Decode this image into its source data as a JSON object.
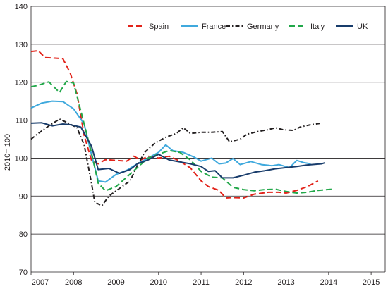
{
  "chart_data": {
    "type": "line",
    "ylabel": "2010= 100",
    "ylim": [
      70,
      140
    ],
    "yticks": [
      70,
      80,
      90,
      100,
      110,
      120,
      130,
      140
    ],
    "xlim": [
      2007,
      2015.33
    ],
    "xticks": [
      2007,
      2008,
      2009,
      2010,
      2011,
      2012,
      2013,
      2014,
      2015
    ],
    "grid": "horizontal",
    "legend": "top",
    "series": [
      {
        "name": "Spain",
        "color": "#e2231a",
        "dash": "dashed",
        "points": [
          [
            2007.0,
            128.1
          ],
          [
            2007.17,
            128.3
          ],
          [
            2007.33,
            126.5
          ],
          [
            2007.5,
            126.4
          ],
          [
            2007.75,
            126.2
          ],
          [
            2007.92,
            122.5
          ],
          [
            2008.08,
            117.0
          ],
          [
            2008.25,
            106.0
          ],
          [
            2008.42,
            99.5
          ],
          [
            2008.58,
            98.5
          ],
          [
            2008.75,
            99.6
          ],
          [
            2009.0,
            99.4
          ],
          [
            2009.25,
            99.2
          ],
          [
            2009.42,
            100.5
          ],
          [
            2009.58,
            99.5
          ],
          [
            2009.75,
            100.5
          ],
          [
            2010.0,
            100.0
          ],
          [
            2010.25,
            100.5
          ],
          [
            2010.5,
            99.2
          ],
          [
            2010.75,
            97.4
          ],
          [
            2011.0,
            94.0
          ],
          [
            2011.17,
            92.5
          ],
          [
            2011.42,
            91.5
          ],
          [
            2011.58,
            89.5
          ],
          [
            2011.75,
            89.6
          ],
          [
            2012.0,
            89.5
          ],
          [
            2012.25,
            90.5
          ],
          [
            2012.58,
            91.0
          ],
          [
            2012.83,
            91.0
          ],
          [
            2013.0,
            90.8
          ],
          [
            2013.25,
            91.5
          ],
          [
            2013.5,
            92.5
          ],
          [
            2013.75,
            94.0
          ]
        ]
      },
      {
        "name": "France",
        "color": "#3fa9dd",
        "dash": "solid",
        "points": [
          [
            2007.0,
            113.2
          ],
          [
            2007.25,
            114.5
          ],
          [
            2007.5,
            115.0
          ],
          [
            2007.75,
            114.9
          ],
          [
            2008.0,
            113.0
          ],
          [
            2008.25,
            109.0
          ],
          [
            2008.42,
            101.0
          ],
          [
            2008.58,
            94.0
          ],
          [
            2008.75,
            93.7
          ],
          [
            2009.0,
            95.7
          ],
          [
            2009.25,
            96.8
          ],
          [
            2009.5,
            98.5
          ],
          [
            2009.75,
            100.0
          ],
          [
            2010.0,
            101.5
          ],
          [
            2010.17,
            103.5
          ],
          [
            2010.33,
            102.0
          ],
          [
            2010.58,
            101.5
          ],
          [
            2010.83,
            100.3
          ],
          [
            2011.0,
            99.2
          ],
          [
            2011.25,
            100.0
          ],
          [
            2011.42,
            98.5
          ],
          [
            2011.58,
            98.7
          ],
          [
            2011.75,
            99.9
          ],
          [
            2011.92,
            98.3
          ],
          [
            2012.17,
            99.1
          ],
          [
            2012.42,
            98.3
          ],
          [
            2012.67,
            98.0
          ],
          [
            2012.83,
            98.3
          ],
          [
            2013.08,
            97.5
          ],
          [
            2013.25,
            99.4
          ],
          [
            2013.42,
            98.8
          ],
          [
            2013.58,
            98.5
          ]
        ]
      },
      {
        "name": "Germany",
        "color": "#231f20",
        "dash": "dashdot",
        "points": [
          [
            2007.0,
            105.0
          ],
          [
            2007.17,
            106.5
          ],
          [
            2007.42,
            108.5
          ],
          [
            2007.67,
            110.3
          ],
          [
            2007.92,
            109.0
          ],
          [
            2008.08,
            108.0
          ],
          [
            2008.25,
            103.5
          ],
          [
            2008.42,
            93.5
          ],
          [
            2008.5,
            88.3
          ],
          [
            2008.67,
            87.5
          ],
          [
            2008.83,
            90.0
          ],
          [
            2009.08,
            92.0
          ],
          [
            2009.33,
            94.0
          ],
          [
            2009.5,
            98.0
          ],
          [
            2009.67,
            101.5
          ],
          [
            2009.92,
            104.0
          ],
          [
            2010.17,
            105.5
          ],
          [
            2010.42,
            106.5
          ],
          [
            2010.58,
            108.0
          ],
          [
            2010.75,
            106.5
          ],
          [
            2011.0,
            106.8
          ],
          [
            2011.25,
            106.8
          ],
          [
            2011.5,
            107.0
          ],
          [
            2011.67,
            104.3
          ],
          [
            2011.92,
            105.0
          ],
          [
            2012.08,
            106.3
          ],
          [
            2012.33,
            107.0
          ],
          [
            2012.58,
            107.5
          ],
          [
            2012.75,
            108.0
          ],
          [
            2012.92,
            107.5
          ],
          [
            2013.17,
            107.3
          ],
          [
            2013.33,
            108.2
          ],
          [
            2013.58,
            108.8
          ],
          [
            2013.83,
            109.2
          ]
        ]
      },
      {
        "name": "Italy",
        "color": "#22a84a",
        "dash": "dashed",
        "points": [
          [
            2007.0,
            118.8
          ],
          [
            2007.17,
            119.2
          ],
          [
            2007.42,
            120.1
          ],
          [
            2007.67,
            117.3
          ],
          [
            2007.83,
            120.2
          ],
          [
            2008.0,
            119.8
          ],
          [
            2008.17,
            112.5
          ],
          [
            2008.42,
            101.5
          ],
          [
            2008.58,
            93.4
          ],
          [
            2008.75,
            91.4
          ],
          [
            2009.0,
            92.5
          ],
          [
            2009.25,
            95.0
          ],
          [
            2009.5,
            97.5
          ],
          [
            2009.75,
            100.0
          ],
          [
            2010.0,
            101.0
          ],
          [
            2010.25,
            102.0
          ],
          [
            2010.5,
            101.5
          ],
          [
            2010.75,
            99.5
          ],
          [
            2011.0,
            96.5
          ],
          [
            2011.25,
            95.0
          ],
          [
            2011.5,
            94.8
          ],
          [
            2011.75,
            92.3
          ],
          [
            2012.0,
            91.7
          ],
          [
            2012.25,
            91.4
          ],
          [
            2012.5,
            91.7
          ],
          [
            2012.75,
            91.8
          ],
          [
            2013.0,
            91.2
          ],
          [
            2013.25,
            90.8
          ],
          [
            2013.5,
            91.0
          ],
          [
            2013.75,
            91.5
          ],
          [
            2014.08,
            91.8
          ]
        ]
      },
      {
        "name": "UK",
        "color": "#183c6b",
        "dash": "solid",
        "points": [
          [
            2007.0,
            109.2
          ],
          [
            2007.25,
            109.3
          ],
          [
            2007.5,
            108.5
          ],
          [
            2007.75,
            109.0
          ],
          [
            2007.92,
            108.8
          ],
          [
            2008.17,
            108.2
          ],
          [
            2008.42,
            103.2
          ],
          [
            2008.58,
            97.0
          ],
          [
            2008.83,
            97.3
          ],
          [
            2009.08,
            96.0
          ],
          [
            2009.33,
            97.0
          ],
          [
            2009.5,
            98.5
          ],
          [
            2009.75,
            99.5
          ],
          [
            2010.0,
            101.0
          ],
          [
            2010.25,
            99.5
          ],
          [
            2010.5,
            99.0
          ],
          [
            2010.75,
            98.5
          ],
          [
            2011.0,
            97.8
          ],
          [
            2011.17,
            96.5
          ],
          [
            2011.33,
            96.7
          ],
          [
            2011.5,
            94.8
          ],
          [
            2011.75,
            94.8
          ],
          [
            2012.0,
            95.5
          ],
          [
            2012.25,
            96.3
          ],
          [
            2012.5,
            96.7
          ],
          [
            2012.75,
            97.2
          ],
          [
            2013.0,
            97.5
          ],
          [
            2013.25,
            97.8
          ],
          [
            2013.5,
            98.2
          ],
          [
            2013.83,
            98.5
          ],
          [
            2013.92,
            98.8
          ]
        ]
      }
    ]
  }
}
